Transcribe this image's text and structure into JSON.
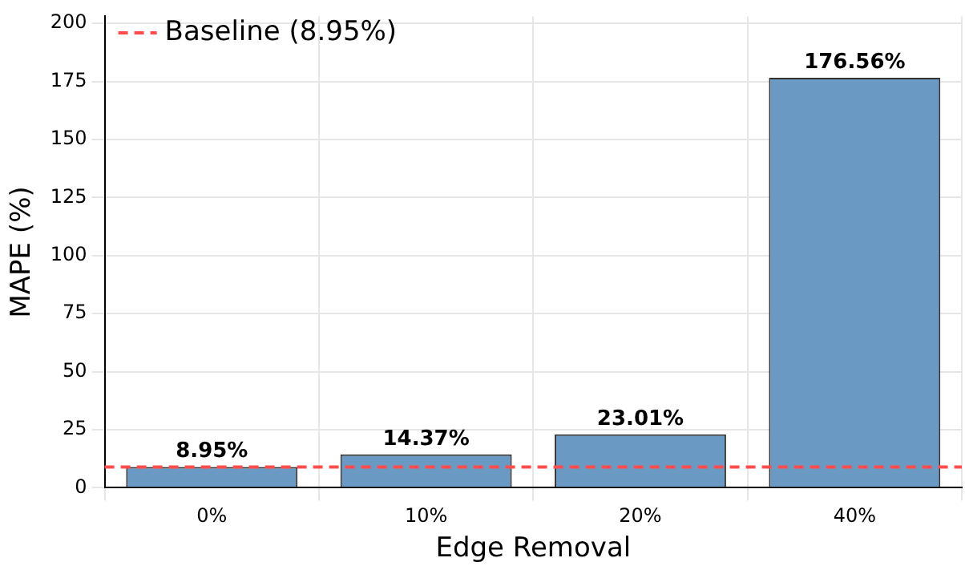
{
  "chart_data": {
    "type": "bar",
    "xlabel": "Edge Removal",
    "ylabel": "MAPE (%)",
    "categories": [
      "0%",
      "10%",
      "20%",
      "40%"
    ],
    "values": [
      8.95,
      14.37,
      23.01,
      176.56
    ],
    "color": "#6a9ac4",
    "ylim": [
      0,
      203
    ],
    "yticks": [
      0,
      25,
      50,
      75,
      100,
      125,
      150,
      175,
      200
    ],
    "grid": true,
    "data_labels": true,
    "value_labels": [
      "8.95%",
      "14.37%",
      "23.01%",
      "176.56%"
    ],
    "legend": "top left",
    "ref_lines": [
      {
        "axis": "y",
        "value": 8.95,
        "label": "Baseline (8.95%)",
        "color": "#ff4d4d",
        "line_style": "dashed"
      }
    ]
  }
}
